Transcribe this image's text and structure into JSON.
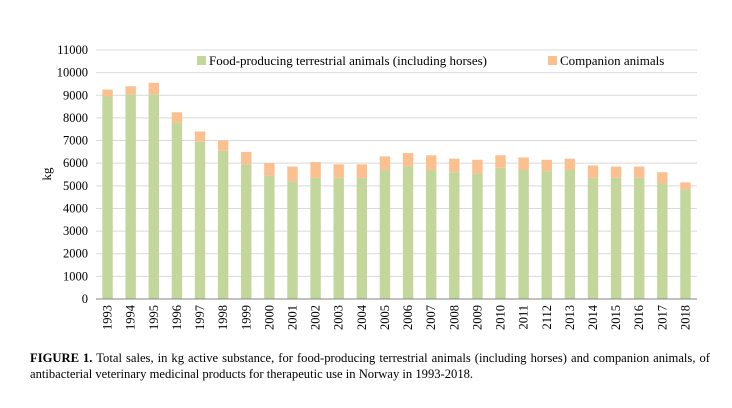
{
  "chart_data": {
    "type": "bar",
    "stacked": true,
    "title": "",
    "xlabel": "",
    "ylabel": "kg",
    "ylim": [
      0,
      11000
    ],
    "yticks": [
      0,
      1000,
      2000,
      3000,
      4000,
      5000,
      6000,
      7000,
      8000,
      9000,
      10000,
      11000
    ],
    "grid": true,
    "legend_position": "top",
    "categories": [
      "1993",
      "1994",
      "1995",
      "1996",
      "1997",
      "1998",
      "1999",
      "2000",
      "2001",
      "2002",
      "2003",
      "2004",
      "2005",
      "2006",
      "2007",
      "2008",
      "2009",
      "2010",
      "2011",
      "2112",
      "2013",
      "2014",
      "2015",
      "2016",
      "2017",
      "2018"
    ],
    "series": [
      {
        "name": "Food-producing terrestrial animals (including horses)",
        "color": "#c3d69b",
        "values": [
          8950,
          9050,
          9050,
          7800,
          6950,
          6550,
          5950,
          5450,
          5200,
          5350,
          5350,
          5350,
          5700,
          5850,
          5700,
          5600,
          5550,
          5800,
          5700,
          5650,
          5700,
          5350,
          5350,
          5350,
          5100,
          4850
        ]
      },
      {
        "name": "Companion animals",
        "color": "#fac090",
        "values": [
          300,
          350,
          500,
          450,
          450,
          450,
          550,
          550,
          650,
          700,
          600,
          600,
          600,
          600,
          650,
          600,
          600,
          550,
          550,
          500,
          500,
          550,
          500,
          500,
          500,
          300
        ]
      }
    ]
  },
  "caption": {
    "label": "FIGURE 1.",
    "text": " Total sales, in kg active substance, for food-producing terrestrial animals (including horses) and companion animals, of antibacterial veterinary medicinal products for therapeutic use in Norway in 1993-2018."
  }
}
